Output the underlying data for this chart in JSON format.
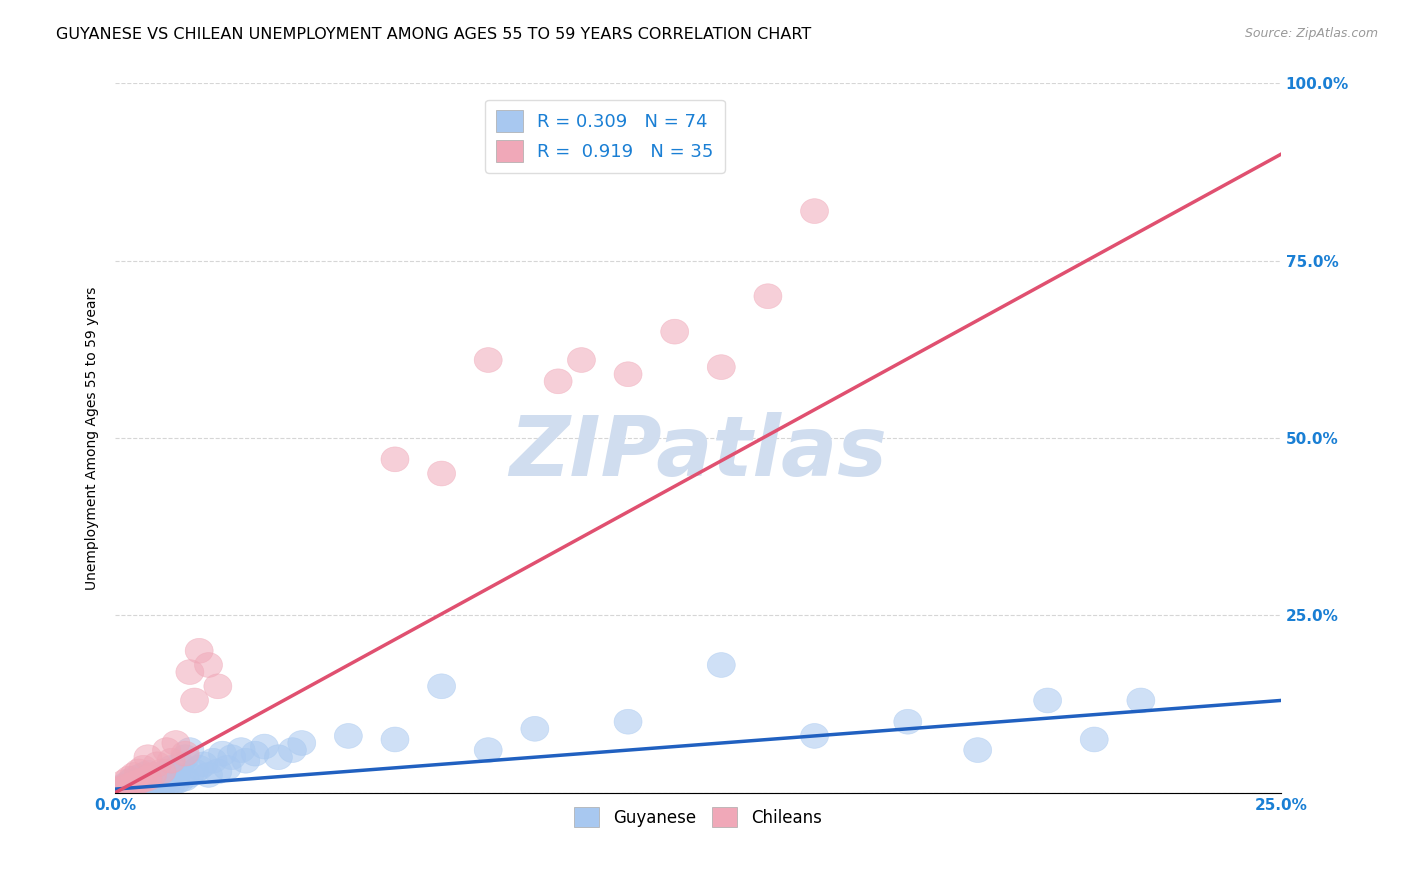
{
  "title": "GUYANESE VS CHILEAN UNEMPLOYMENT AMONG AGES 55 TO 59 YEARS CORRELATION CHART",
  "source_text": "Source: ZipAtlas.com",
  "ylabel": "Unemployment Among Ages 55 to 59 years",
  "xlim": [
    0.0,
    0.25
  ],
  "ylim": [
    0.0,
    1.0
  ],
  "xticks": [
    0.0,
    0.05,
    0.1,
    0.15,
    0.2,
    0.25
  ],
  "yticks_right": [
    0.0,
    0.25,
    0.5,
    0.75,
    1.0
  ],
  "yticklabels_right": [
    "",
    "25.0%",
    "50.0%",
    "75.0%",
    "100.0%"
  ],
  "guyanese_color": "#A8C8F0",
  "chilean_color": "#F0A8B8",
  "guyanese_line_color": "#2060C0",
  "chilean_line_color": "#E05070",
  "guyanese_R": 0.309,
  "guyanese_N": 74,
  "chilean_R": 0.919,
  "chilean_N": 35,
  "legend_color": "#1A7FD4",
  "watermark_text": "ZIPatlas",
  "watermark_color": "#D0DDEF",
  "background_color": "#FFFFFF",
  "grid_color": "#CCCCCC",
  "title_fontsize": 11.5,
  "axis_label_fontsize": 10,
  "tick_fontsize": 11,
  "guyanese_x": [
    0.001,
    0.002,
    0.002,
    0.003,
    0.003,
    0.003,
    0.004,
    0.004,
    0.004,
    0.004,
    0.005,
    0.005,
    0.005,
    0.005,
    0.005,
    0.006,
    0.006,
    0.006,
    0.006,
    0.007,
    0.007,
    0.007,
    0.007,
    0.008,
    0.008,
    0.008,
    0.009,
    0.009,
    0.01,
    0.01,
    0.01,
    0.011,
    0.011,
    0.011,
    0.012,
    0.012,
    0.012,
    0.013,
    0.013,
    0.014,
    0.014,
    0.015,
    0.015,
    0.016,
    0.016,
    0.017,
    0.018,
    0.019,
    0.02,
    0.021,
    0.022,
    0.023,
    0.024,
    0.025,
    0.027,
    0.028,
    0.03,
    0.032,
    0.035,
    0.038,
    0.04,
    0.05,
    0.06,
    0.07,
    0.08,
    0.09,
    0.11,
    0.13,
    0.15,
    0.17,
    0.185,
    0.2,
    0.21,
    0.22
  ],
  "guyanese_y": [
    0.005,
    0.005,
    0.01,
    0.005,
    0.01,
    0.015,
    0.005,
    0.01,
    0.015,
    0.02,
    0.005,
    0.008,
    0.012,
    0.018,
    0.022,
    0.006,
    0.01,
    0.016,
    0.025,
    0.008,
    0.012,
    0.018,
    0.028,
    0.01,
    0.015,
    0.022,
    0.012,
    0.02,
    0.008,
    0.015,
    0.025,
    0.01,
    0.018,
    0.03,
    0.012,
    0.02,
    0.035,
    0.015,
    0.025,
    0.018,
    0.04,
    0.02,
    0.05,
    0.025,
    0.06,
    0.03,
    0.035,
    0.04,
    0.025,
    0.045,
    0.03,
    0.055,
    0.035,
    0.05,
    0.06,
    0.045,
    0.055,
    0.065,
    0.05,
    0.06,
    0.07,
    0.08,
    0.075,
    0.15,
    0.06,
    0.09,
    0.1,
    0.18,
    0.08,
    0.1,
    0.06,
    0.13,
    0.075,
    0.13
  ],
  "chilean_x": [
    0.001,
    0.002,
    0.002,
    0.003,
    0.003,
    0.004,
    0.004,
    0.005,
    0.005,
    0.006,
    0.006,
    0.007,
    0.007,
    0.008,
    0.009,
    0.01,
    0.011,
    0.012,
    0.013,
    0.015,
    0.016,
    0.017,
    0.018,
    0.02,
    0.022,
    0.06,
    0.07,
    0.08,
    0.095,
    0.1,
    0.11,
    0.12,
    0.13,
    0.14,
    0.15
  ],
  "chilean_y": [
    0.005,
    0.008,
    0.015,
    0.01,
    0.02,
    0.012,
    0.025,
    0.015,
    0.03,
    0.018,
    0.035,
    0.02,
    0.05,
    0.025,
    0.04,
    0.03,
    0.06,
    0.045,
    0.07,
    0.055,
    0.17,
    0.13,
    0.2,
    0.18,
    0.15,
    0.47,
    0.45,
    0.61,
    0.58,
    0.61,
    0.59,
    0.65,
    0.6,
    0.7,
    0.82
  ],
  "guyanese_line_x": [
    0.0,
    0.25
  ],
  "guyanese_line_y": [
    0.005,
    0.13
  ],
  "chilean_line_x": [
    0.0,
    0.25
  ],
  "chilean_line_y": [
    0.0,
    0.9
  ]
}
